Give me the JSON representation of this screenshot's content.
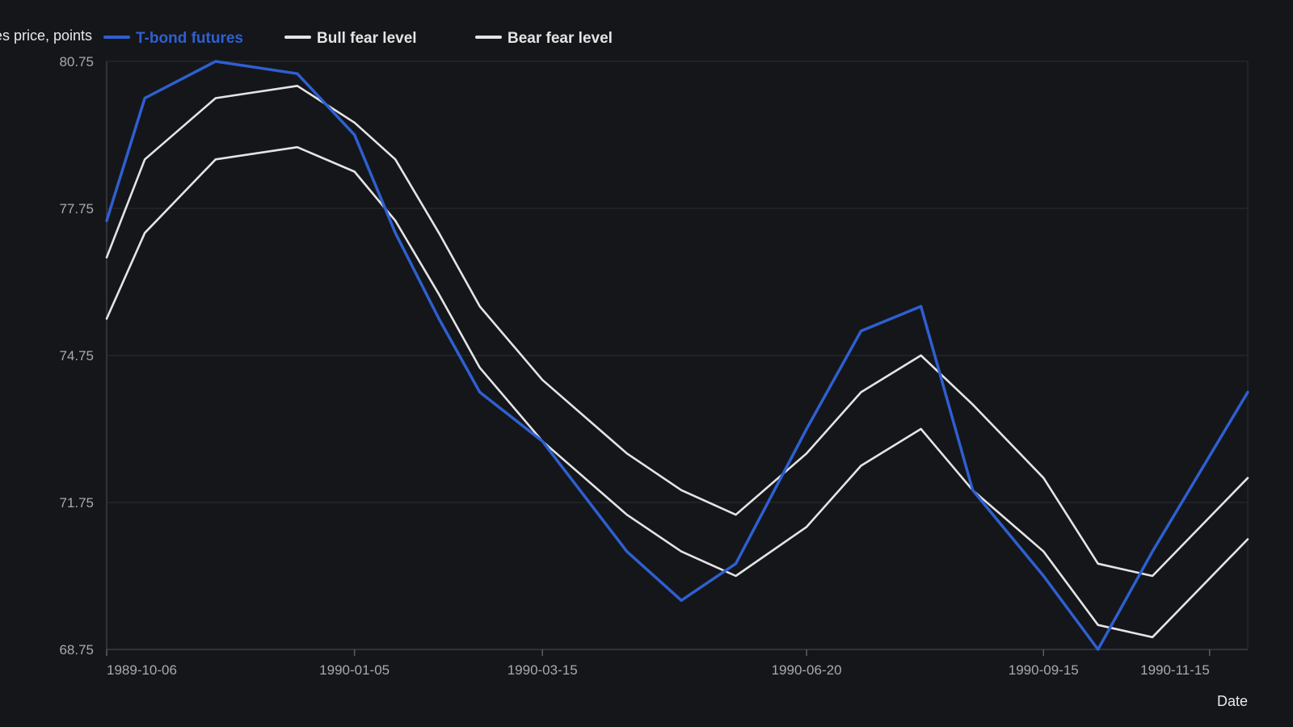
{
  "chart_data": {
    "type": "line",
    "ylabel": "T-bond futures price, points",
    "xlabel": "Date",
    "ylim": [
      68.75,
      80.75
    ],
    "xlim": [
      "1989-10-06",
      "1990-11-29"
    ],
    "y_ticks": [
      "68.75",
      "71.75",
      "74.75",
      "77.75",
      "80.75"
    ],
    "x_ticks": [
      "1989-10-06",
      "1990-01-05",
      "1990-03-15",
      "1990-06-20",
      "1990-09-15",
      "1990-11-15"
    ],
    "grid": true,
    "legend_position": "top-left",
    "x": [
      "1989-10-06",
      "1989-10-20",
      "1989-11-15",
      "1989-12-15",
      "1990-01-05",
      "1990-01-20",
      "1990-02-05",
      "1990-02-20",
      "1990-03-15",
      "1990-04-15",
      "1990-05-05",
      "1990-05-25",
      "1990-06-20",
      "1990-07-10",
      "1990-08-01",
      "1990-08-20",
      "1990-09-15",
      "1990-10-05",
      "1990-10-25",
      "1990-11-29"
    ],
    "series": [
      {
        "name": "T-bond futures",
        "color": "#2f5fd0",
        "values": [
          77.5,
          80.0,
          80.75,
          80.5,
          79.25,
          77.25,
          75.5,
          74.0,
          73.0,
          70.75,
          69.75,
          70.5,
          73.25,
          75.25,
          75.75,
          72.0,
          70.25,
          68.75,
          70.75,
          74.0
        ]
      },
      {
        "name": "Bull fear level",
        "color": "#e4e4e4",
        "values": [
          76.75,
          78.75,
          80.0,
          80.25,
          79.5,
          78.75,
          77.25,
          75.75,
          74.25,
          72.75,
          72.0,
          71.5,
          72.75,
          74.0,
          74.75,
          73.75,
          72.25,
          70.5,
          70.25,
          72.25
        ]
      },
      {
        "name": "Bear fear level",
        "color": "#e4e4e4",
        "values": [
          75.5,
          77.25,
          78.75,
          79.0,
          78.5,
          77.5,
          76.0,
          74.5,
          73.0,
          71.5,
          70.75,
          70.25,
          71.25,
          72.5,
          73.25,
          72.0,
          70.75,
          69.25,
          69.0,
          71.0
        ]
      }
    ]
  }
}
